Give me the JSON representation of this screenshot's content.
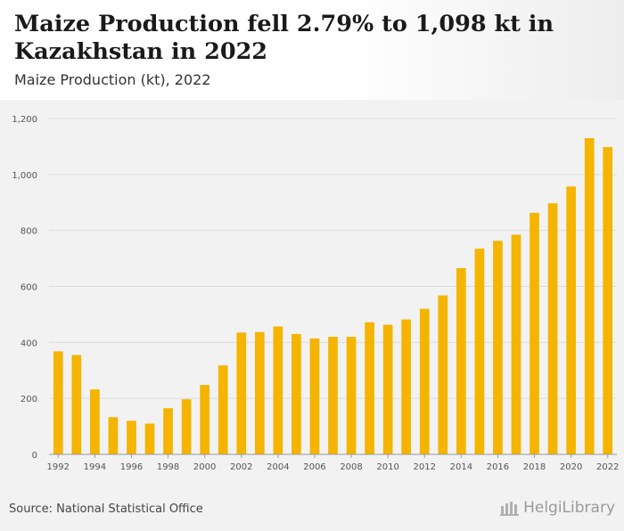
{
  "header": {
    "title": "Maize Production fell 2.79% to 1,098 kt in Kazakhstan in 2022",
    "subtitle": "Maize Production (kt), 2022"
  },
  "footer": {
    "source": "Source: National Statistical Office",
    "brand": "HelgiLibrary"
  },
  "colors": {
    "bar": "#f5b400",
    "grid": "#dcdcdc",
    "axis_text": "#555555"
  },
  "chart_data": {
    "type": "bar",
    "categories": [
      "1992",
      "1993",
      "1994",
      "1995",
      "1996",
      "1997",
      "1998",
      "1999",
      "2000",
      "2001",
      "2002",
      "2003",
      "2004",
      "2005",
      "2006",
      "2007",
      "2008",
      "2009",
      "2010",
      "2011",
      "2012",
      "2013",
      "2014",
      "2015",
      "2016",
      "2017",
      "2018",
      "2019",
      "2020",
      "2021",
      "2022"
    ],
    "x_tick_labels": [
      "1992",
      "1994",
      "1996",
      "1998",
      "2000",
      "2002",
      "2004",
      "2006",
      "2008",
      "2010",
      "2012",
      "2014",
      "2016",
      "2018",
      "2020",
      "2022"
    ],
    "values": [
      368,
      355,
      232,
      133,
      120,
      110,
      165,
      197,
      248,
      318,
      435,
      437,
      457,
      430,
      414,
      420,
      420,
      472,
      463,
      482,
      520,
      568,
      665,
      735,
      763,
      785,
      863,
      897,
      957,
      1130,
      1098
    ],
    "y_ticks": [
      0,
      200,
      400,
      600,
      800,
      1000,
      1200
    ],
    "y_tick_labels": [
      "0",
      "200",
      "400",
      "600",
      "800",
      "1,000",
      "1,200"
    ],
    "ylim": [
      0,
      1200
    ],
    "grid": true
  }
}
